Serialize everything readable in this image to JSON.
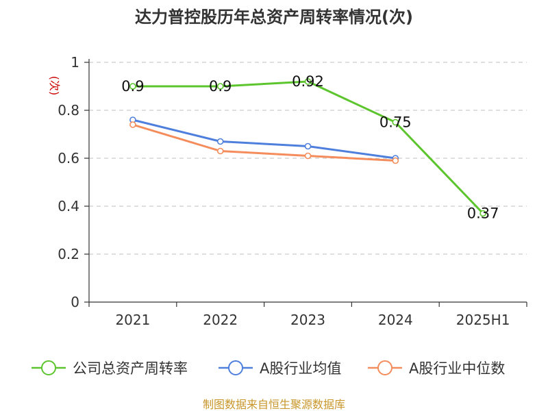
{
  "chart_data": {
    "type": "line",
    "title": "达力普控股历年总资产周转率情况(次)",
    "ylabel": "(次)",
    "xlabel": "",
    "categories": [
      "2021",
      "2022",
      "2023",
      "2024",
      "2025H1"
    ],
    "ylim": [
      0,
      1
    ],
    "yticks": [
      "0",
      "0.2",
      "0.4",
      "0.6",
      "0.8",
      "1"
    ],
    "grid": true,
    "legend_position": "bottom",
    "series": [
      {
        "name": "公司总资产周转率",
        "color": "#5cc52e",
        "values": [
          0.9,
          0.9,
          0.92,
          0.75,
          0.37
        ],
        "labels": [
          "0.9",
          "0.9",
          "0.92",
          "0.75",
          "0.37"
        ]
      },
      {
        "name": "A股行业均值",
        "color": "#4f7fdc",
        "values": [
          0.76,
          0.67,
          0.65,
          0.6,
          null
        ]
      },
      {
        "name": "A股行业中位数",
        "color": "#f48c5c",
        "values": [
          0.74,
          0.63,
          0.61,
          0.59,
          null
        ]
      }
    ],
    "source": "制图数据来自恒生聚源数据库"
  }
}
